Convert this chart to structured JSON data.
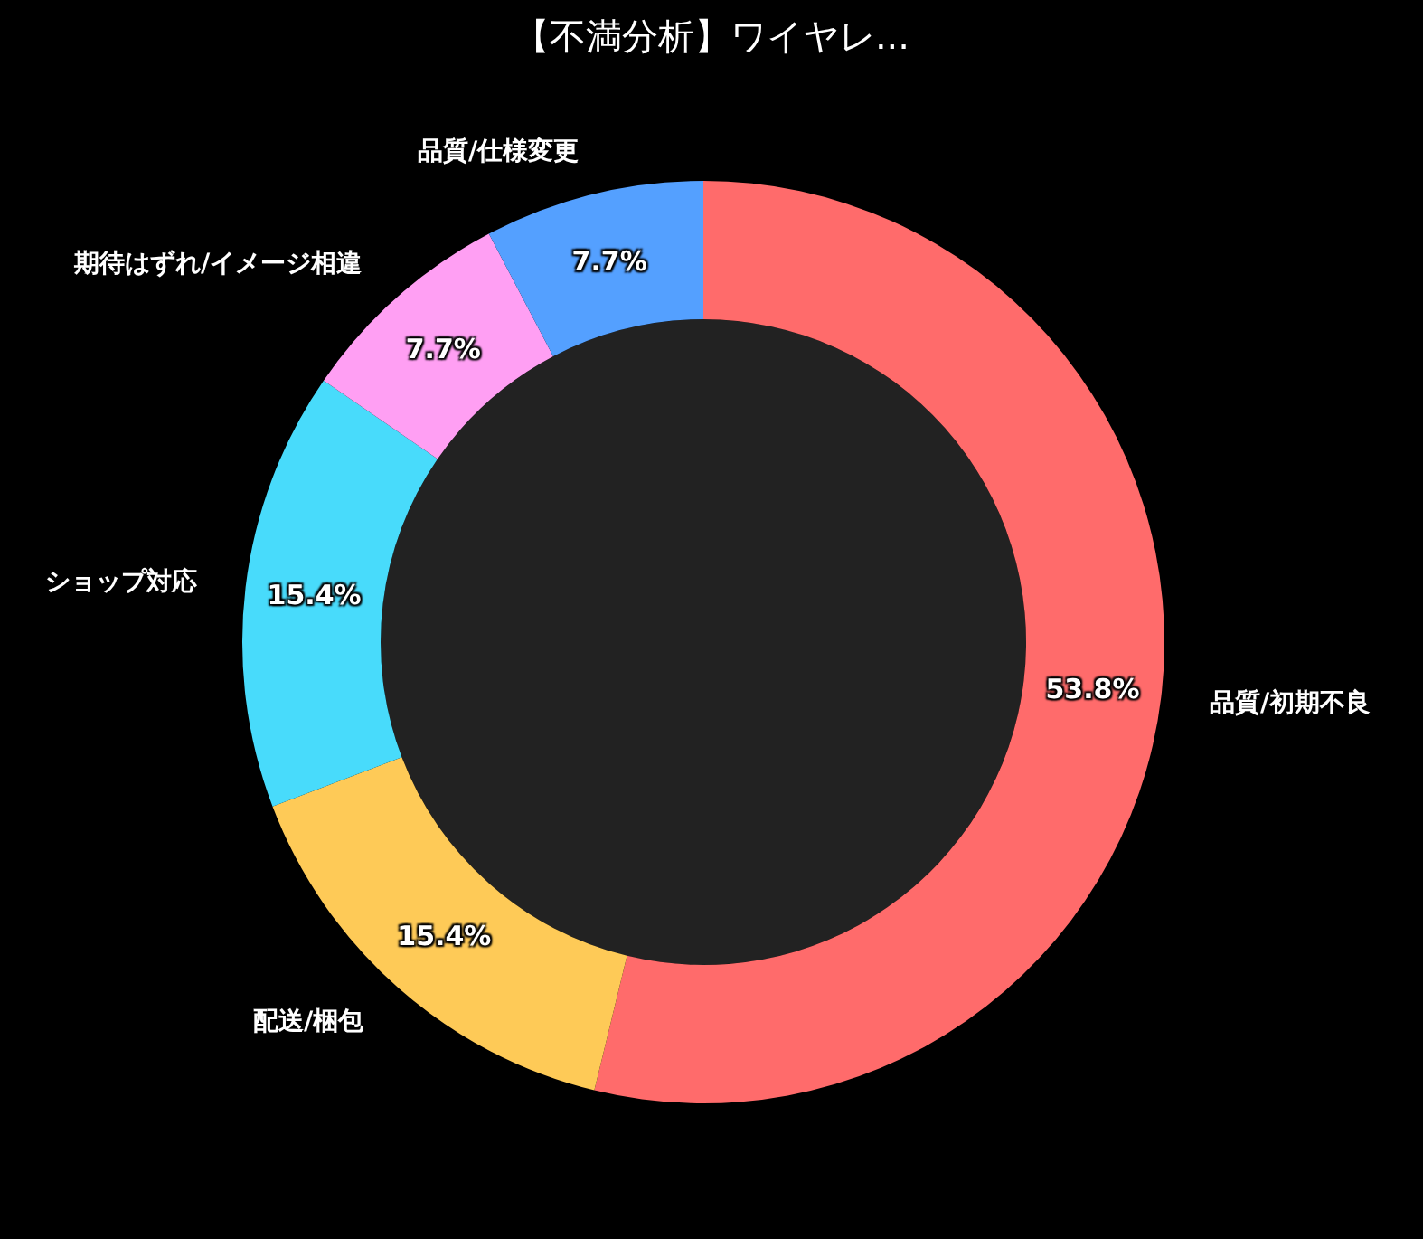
{
  "chart_data": {
    "type": "donut",
    "title": "【不満分析】ワイヤレ...",
    "categories": [
      "品質/初期不良",
      "配送/梱包",
      "ショップ対応",
      "期待はずれ/イメージ相違",
      "品質/仕様変更"
    ],
    "values": [
      53.8,
      15.4,
      15.4,
      7.7,
      7.7
    ],
    "value_labels": [
      "53.8%",
      "15.4%",
      "15.4%",
      "7.7%",
      "7.7%"
    ],
    "colors": [
      "#ff6b6b",
      "#feca57",
      "#48dbfb",
      "#ff9ff3",
      "#54a0ff"
    ],
    "legend": false
  }
}
